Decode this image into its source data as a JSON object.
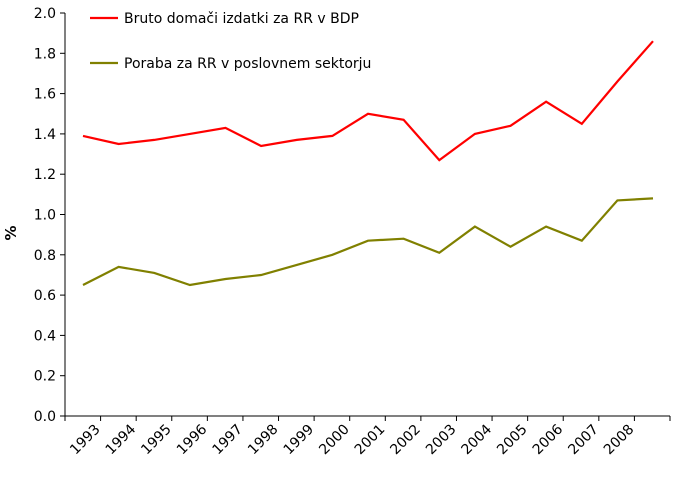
{
  "chart_data": {
    "type": "line",
    "categories": [
      "1993",
      "1994",
      "1995",
      "1996",
      "1997",
      "1998",
      "1999",
      "2000",
      "2001",
      "2002",
      "2003",
      "2004",
      "2005",
      "2006",
      "2007",
      "2008"
    ],
    "x": [
      1993,
      1993.5,
      1994,
      1994.5,
      1995,
      1995.5,
      1996,
      1996.5,
      1997,
      1997.5,
      1998,
      1998.5,
      1999,
      1999.5,
      2000,
      2000.5,
      2001,
      2001.5,
      2002,
      2002.5,
      2003,
      2003.5,
      2004,
      2004.5,
      2005,
      2005.5,
      2006,
      2006.5,
      2007,
      2007.5,
      2008,
      2008.5
    ],
    "series": [
      {
        "name": "Bruto domači izdatki za RR v BDP",
        "color": "#ff0000",
        "x": [
          1993,
          1994,
          1995,
          1996,
          1997,
          1998,
          1999,
          2000,
          2001,
          2002,
          2003,
          2004,
          2005,
          2006,
          2007,
          2008,
          2009
        ],
        "values": [
          1.39,
          1.35,
          1.37,
          1.4,
          1.43,
          1.34,
          1.37,
          1.39,
          1.5,
          1.47,
          1.27,
          1.4,
          1.44,
          1.56,
          1.45,
          1.66,
          1.86
        ]
      },
      {
        "name": "Poraba za RR v poslovnem sektorju",
        "color": "#808000",
        "x": [
          1993,
          1994,
          1995,
          1996,
          1997,
          1998,
          1999,
          2000,
          2001,
          2002,
          2003,
          2004,
          2005,
          2006,
          2007,
          2008,
          2009
        ],
        "values": [
          0.65,
          0.74,
          0.71,
          0.65,
          0.68,
          0.7,
          0.75,
          0.8,
          0.87,
          0.88,
          0.81,
          0.94,
          0.84,
          0.94,
          0.87,
          1.07,
          1.08
        ]
      }
    ],
    "ylabel": "%",
    "xlabel": "",
    "ylim": [
      0.0,
      2.0
    ],
    "yticks": [
      "0.0",
      "0.2",
      "0.4",
      "0.6",
      "0.8",
      "1.0",
      "1.2",
      "1.4",
      "1.6",
      "1.8",
      "2.0"
    ],
    "grid": false,
    "legend": "top-left"
  }
}
